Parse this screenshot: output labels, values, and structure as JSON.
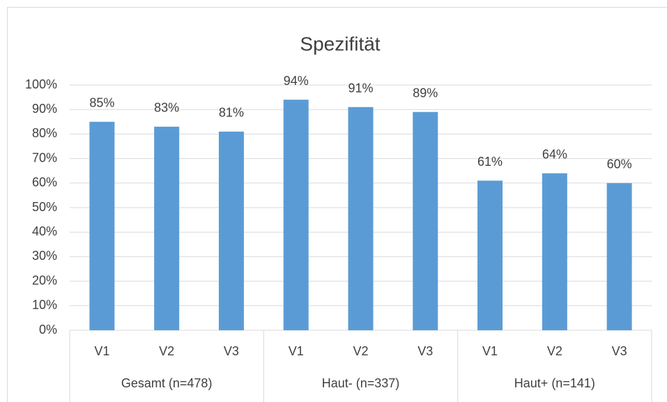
{
  "chart_data": {
    "type": "bar",
    "title": "Spezifität",
    "categories": [
      "V1",
      "V2",
      "V3",
      "V1",
      "V2",
      "V3",
      "V1",
      "V2",
      "V3"
    ],
    "groups": [
      "Gesamt (n=478)",
      "Haut- (n=337)",
      "Haut+ (n=141)"
    ],
    "values": [
      85,
      83,
      81,
      94,
      91,
      89,
      61,
      64,
      60
    ],
    "value_labels": [
      "85%",
      "83%",
      "81%",
      "94%",
      "91%",
      "89%",
      "61%",
      "64%",
      "60%"
    ],
    "color": "#5b9bd5",
    "ylim": [
      0,
      100
    ],
    "yticks": [
      {
        "value": 0,
        "label": "0%"
      },
      {
        "value": 10,
        "label": "10%"
      },
      {
        "value": 20,
        "label": "20%"
      },
      {
        "value": 30,
        "label": "30%"
      },
      {
        "value": 40,
        "label": "40%"
      },
      {
        "value": 50,
        "label": "50%"
      },
      {
        "value": 60,
        "label": "60%"
      },
      {
        "value": 70,
        "label": "70%"
      },
      {
        "value": 80,
        "label": "80%"
      },
      {
        "value": 90,
        "label": "90%"
      },
      {
        "value": 100,
        "label": "100%"
      }
    ],
    "grid": true
  }
}
